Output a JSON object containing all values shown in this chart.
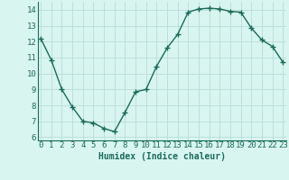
{
  "x": [
    0,
    1,
    2,
    3,
    4,
    5,
    6,
    7,
    8,
    9,
    10,
    11,
    12,
    13,
    14,
    15,
    16,
    17,
    18,
    19,
    20,
    21,
    22,
    23
  ],
  "y": [
    12.2,
    10.85,
    9.0,
    7.9,
    7.0,
    6.9,
    6.55,
    6.35,
    7.55,
    8.85,
    9.0,
    10.45,
    11.6,
    12.45,
    13.85,
    14.05,
    14.1,
    14.05,
    13.9,
    13.85,
    12.85,
    12.1,
    11.7,
    10.7
  ],
  "line_color": "#1a6b5a",
  "marker": "+",
  "markersize": 4,
  "linewidth": 1.0,
  "xlabel": "Humidex (Indice chaleur)",
  "xlabel_fontsize": 7,
  "bg_color": "#d9f5f0",
  "grid_color": "#b8ddd6",
  "yticks": [
    6,
    7,
    8,
    9,
    10,
    11,
    12,
    13,
    14
  ],
  "xticks": [
    0,
    1,
    2,
    3,
    4,
    5,
    6,
    7,
    8,
    9,
    10,
    11,
    12,
    13,
    14,
    15,
    16,
    17,
    18,
    19,
    20,
    21,
    22,
    23
  ],
  "ylim": [
    5.8,
    14.5
  ],
  "xlim": [
    -0.3,
    23.3
  ],
  "tick_fontsize": 6.5
}
